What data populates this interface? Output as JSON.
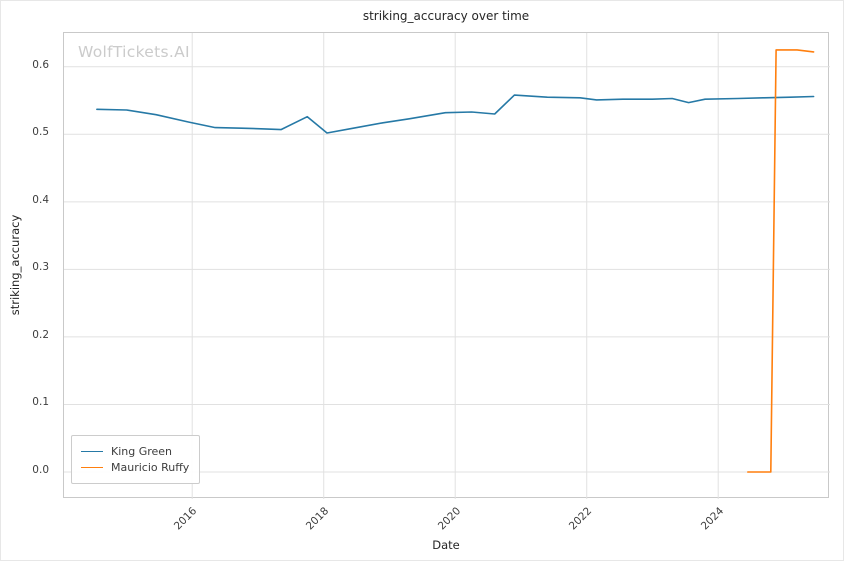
{
  "figure": {
    "title": "striking_accuracy over time",
    "watermark": "WolfTickets.AI",
    "xlabel": "Date",
    "ylabel": "striking_accuracy"
  },
  "legend": {
    "items": [
      {
        "label": "King Green",
        "color": "#2679a6"
      },
      {
        "label": "Mauricio Ruffy",
        "color": "#ff7f0e"
      }
    ]
  },
  "chart_data": {
    "type": "line",
    "title": "striking_accuracy over time",
    "xlabel": "Date",
    "ylabel": "striking_accuracy",
    "xlim": [
      2014.05,
      2025.7
    ],
    "ylim": [
      -0.04,
      0.65
    ],
    "x_ticks": [
      2016,
      2018,
      2020,
      2022,
      2024
    ],
    "y_ticks": [
      0.0,
      0.1,
      0.2,
      0.3,
      0.4,
      0.5,
      0.6
    ],
    "grid": true,
    "legend_position": "lower left",
    "series": [
      {
        "name": "King Green",
        "color": "#2679a6",
        "x": [
          2014.55,
          2015.0,
          2015.45,
          2015.95,
          2016.35,
          2016.75,
          2017.1,
          2017.35,
          2017.75,
          2018.05,
          2018.45,
          2018.9,
          2019.3,
          2019.85,
          2020.25,
          2020.6,
          2020.9,
          2021.4,
          2021.9,
          2022.15,
          2022.55,
          2023.0,
          2023.3,
          2023.55,
          2023.8,
          2024.3,
          2024.7,
          2025.1,
          2025.45
        ],
        "y": [
          0.537,
          0.536,
          0.529,
          0.518,
          0.51,
          0.509,
          0.508,
          0.507,
          0.526,
          0.502,
          0.509,
          0.517,
          0.523,
          0.532,
          0.533,
          0.53,
          0.558,
          0.555,
          0.554,
          0.551,
          0.552,
          0.552,
          0.553,
          0.547,
          0.552,
          0.553,
          0.554,
          0.555,
          0.556
        ]
      },
      {
        "name": "Mauricio Ruffy",
        "color": "#ff7f0e",
        "x": [
          2024.45,
          2024.8,
          2024.88,
          2025.2,
          2025.45
        ],
        "y": [
          0.0,
          0.0,
          0.625,
          0.625,
          0.622
        ]
      }
    ]
  }
}
